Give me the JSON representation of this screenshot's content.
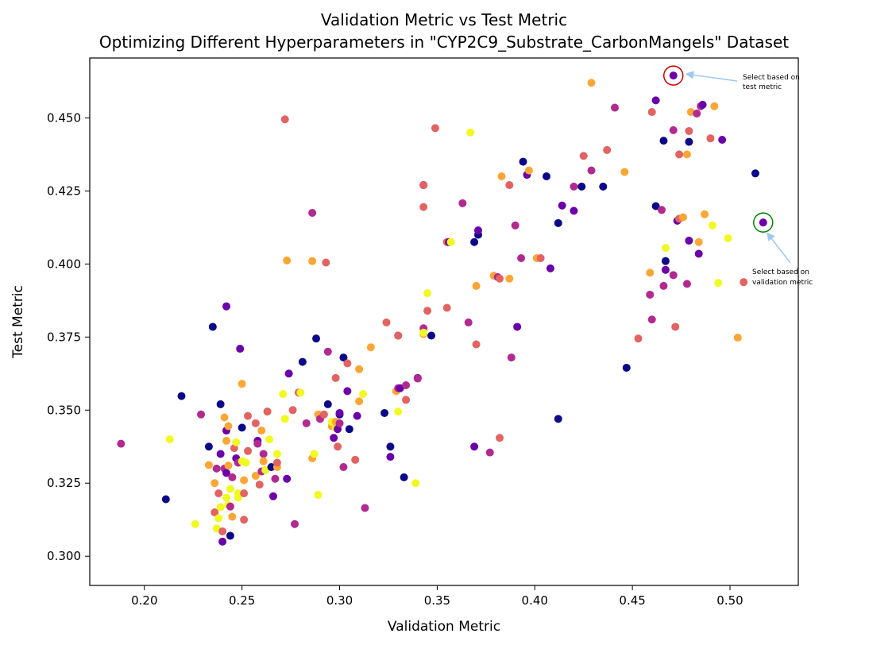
{
  "chart_data": {
    "type": "scatter",
    "title": "Validation Metric vs Test Metric",
    "subtitle": "Optimizing Different Hyperparameters in \"CYP2C9_Substrate_CarbonMangels\" Dataset",
    "xlabel": "Validation Metric",
    "ylabel": "Test Metric",
    "xlim": [
      0.172,
      0.535
    ],
    "ylim": [
      0.29,
      0.4705
    ],
    "xticks": [
      "0.20",
      "0.25",
      "0.30",
      "0.35",
      "0.40",
      "0.45",
      "0.50"
    ],
    "yticks": [
      "0.300",
      "0.325",
      "0.350",
      "0.375",
      "0.400",
      "0.425",
      "0.450"
    ],
    "colormap": [
      "#0d0887",
      "#6a00a8",
      "#b12a90",
      "#e16462",
      "#fca636",
      "#f0f921"
    ],
    "annotations": [
      {
        "line1": "Select based on",
        "line2": "test metric",
        "x": 0.471,
        "y": 0.4645,
        "circle_color": "#cc0000"
      },
      {
        "line1": "Select based on",
        "line2": "validation metric",
        "x": 0.517,
        "y": 0.4142,
        "circle_color": "#008000"
      }
    ],
    "points": [
      [
        0.188,
        0.3385,
        2
      ],
      [
        0.211,
        0.3195,
        0
      ],
      [
        0.213,
        0.34,
        5
      ],
      [
        0.219,
        0.3548,
        0
      ],
      [
        0.226,
        0.311,
        5
      ],
      [
        0.229,
        0.3485,
        2
      ],
      [
        0.233,
        0.3375,
        0
      ],
      [
        0.233,
        0.3312,
        4
      ],
      [
        0.235,
        0.3785,
        0
      ],
      [
        0.236,
        0.325,
        4
      ],
      [
        0.236,
        0.315,
        3
      ],
      [
        0.237,
        0.33,
        2
      ],
      [
        0.237,
        0.3095,
        5
      ],
      [
        0.238,
        0.313,
        5
      ],
      [
        0.238,
        0.3215,
        3
      ],
      [
        0.239,
        0.335,
        1
      ],
      [
        0.239,
        0.352,
        0
      ],
      [
        0.239,
        0.3168,
        5
      ],
      [
        0.24,
        0.3085,
        3
      ],
      [
        0.24,
        0.305,
        1
      ],
      [
        0.241,
        0.33,
        2
      ],
      [
        0.241,
        0.3475,
        4
      ],
      [
        0.242,
        0.3855,
        1
      ],
      [
        0.242,
        0.343,
        1
      ],
      [
        0.242,
        0.3395,
        4
      ],
      [
        0.242,
        0.3285,
        1
      ],
      [
        0.242,
        0.32,
        5
      ],
      [
        0.243,
        0.3175,
        5
      ],
      [
        0.243,
        0.3445,
        4
      ],
      [
        0.243,
        0.331,
        4
      ],
      [
        0.244,
        0.307,
        0
      ],
      [
        0.244,
        0.323,
        5
      ],
      [
        0.244,
        0.317,
        2
      ],
      [
        0.245,
        0.3135,
        4
      ],
      [
        0.245,
        0.327,
        2
      ],
      [
        0.246,
        0.337,
        3
      ],
      [
        0.247,
        0.339,
        5
      ],
      [
        0.247,
        0.3335,
        1
      ],
      [
        0.248,
        0.332,
        2
      ],
      [
        0.248,
        0.3215,
        5
      ],
      [
        0.248,
        0.32,
        5
      ],
      [
        0.249,
        0.371,
        1
      ],
      [
        0.25,
        0.359,
        4
      ],
      [
        0.25,
        0.3325,
        5
      ],
      [
        0.25,
        0.344,
        0
      ],
      [
        0.251,
        0.3125,
        3
      ],
      [
        0.251,
        0.3215,
        3
      ],
      [
        0.251,
        0.326,
        4
      ],
      [
        0.252,
        0.332,
        5
      ],
      [
        0.253,
        0.348,
        3
      ],
      [
        0.253,
        0.336,
        3
      ],
      [
        0.257,
        0.3455,
        3
      ],
      [
        0.257,
        0.3275,
        4
      ],
      [
        0.258,
        0.3395,
        1
      ],
      [
        0.258,
        0.3385,
        2
      ],
      [
        0.259,
        0.3245,
        3
      ],
      [
        0.26,
        0.343,
        4
      ],
      [
        0.26,
        0.329,
        2
      ],
      [
        0.261,
        0.335,
        2
      ],
      [
        0.261,
        0.3325,
        4
      ],
      [
        0.262,
        0.3295,
        5
      ],
      [
        0.263,
        0.3495,
        4
      ],
      [
        0.263,
        0.3495,
        3
      ],
      [
        0.264,
        0.34,
        5
      ],
      [
        0.265,
        0.3305,
        0
      ],
      [
        0.266,
        0.3205,
        1
      ],
      [
        0.267,
        0.3265,
        2
      ],
      [
        0.268,
        0.335,
        5
      ],
      [
        0.268,
        0.3305,
        4
      ],
      [
        0.268,
        0.332,
        3
      ],
      [
        0.271,
        0.3555,
        5
      ],
      [
        0.272,
        0.4495,
        3
      ],
      [
        0.272,
        0.347,
        5
      ],
      [
        0.273,
        0.4012,
        4
      ],
      [
        0.273,
        0.3265,
        1
      ],
      [
        0.274,
        0.3625,
        1
      ],
      [
        0.276,
        0.35,
        3
      ],
      [
        0.277,
        0.311,
        2
      ],
      [
        0.279,
        0.356,
        4
      ],
      [
        0.279,
        0.356,
        3
      ],
      [
        0.28,
        0.356,
        5
      ],
      [
        0.281,
        0.3665,
        0
      ],
      [
        0.283,
        0.3455,
        2
      ],
      [
        0.286,
        0.401,
        4
      ],
      [
        0.286,
        0.4175,
        2
      ],
      [
        0.286,
        0.3335,
        4
      ],
      [
        0.287,
        0.335,
        5
      ],
      [
        0.288,
        0.3745,
        0
      ],
      [
        0.289,
        0.3485,
        4
      ],
      [
        0.289,
        0.321,
        5
      ],
      [
        0.29,
        0.347,
        2
      ],
      [
        0.292,
        0.3485,
        3
      ],
      [
        0.293,
        0.4005,
        3
      ],
      [
        0.294,
        0.352,
        0
      ],
      [
        0.294,
        0.37,
        2
      ],
      [
        0.296,
        0.3445,
        4
      ],
      [
        0.296,
        0.346,
        5
      ],
      [
        0.297,
        0.3405,
        1
      ],
      [
        0.298,
        0.344,
        5
      ],
      [
        0.298,
        0.346,
        4
      ],
      [
        0.298,
        0.361,
        3
      ],
      [
        0.299,
        0.3435,
        1
      ],
      [
        0.299,
        0.3375,
        3
      ],
      [
        0.3,
        0.3455,
        2
      ],
      [
        0.3,
        0.3485,
        0
      ],
      [
        0.3,
        0.349,
        1
      ],
      [
        0.302,
        0.368,
        0
      ],
      [
        0.302,
        0.3305,
        2
      ],
      [
        0.304,
        0.3565,
        1
      ],
      [
        0.304,
        0.366,
        3
      ],
      [
        0.305,
        0.3435,
        0
      ],
      [
        0.308,
        0.333,
        3
      ],
      [
        0.309,
        0.348,
        1
      ],
      [
        0.31,
        0.353,
        4
      ],
      [
        0.31,
        0.364,
        4
      ],
      [
        0.312,
        0.3555,
        5
      ],
      [
        0.313,
        0.3165,
        2
      ],
      [
        0.316,
        0.3715,
        4
      ],
      [
        0.323,
        0.349,
        0
      ],
      [
        0.324,
        0.38,
        3
      ],
      [
        0.326,
        0.3375,
        0
      ],
      [
        0.326,
        0.334,
        1
      ],
      [
        0.329,
        0.3565,
        4
      ],
      [
        0.33,
        0.3575,
        2
      ],
      [
        0.33,
        0.3755,
        0
      ],
      [
        0.33,
        0.3755,
        3
      ],
      [
        0.33,
        0.3495,
        5
      ],
      [
        0.331,
        0.3575,
        1
      ],
      [
        0.333,
        0.327,
        0
      ],
      [
        0.334,
        0.3535,
        3
      ],
      [
        0.334,
        0.3585,
        2
      ],
      [
        0.339,
        0.325,
        5
      ],
      [
        0.34,
        0.361,
        1
      ],
      [
        0.34,
        0.3608,
        2
      ],
      [
        0.343,
        0.427,
        4
      ],
      [
        0.343,
        0.427,
        0
      ],
      [
        0.343,
        0.427,
        3
      ],
      [
        0.343,
        0.4195,
        3
      ],
      [
        0.343,
        0.378,
        2
      ],
      [
        0.343,
        0.376,
        4
      ],
      [
        0.343,
        0.3765,
        5
      ],
      [
        0.345,
        0.39,
        5
      ],
      [
        0.345,
        0.384,
        3
      ],
      [
        0.347,
        0.3755,
        0
      ],
      [
        0.349,
        0.4465,
        3
      ],
      [
        0.355,
        0.385,
        3
      ],
      [
        0.355,
        0.4075,
        3
      ],
      [
        0.356,
        0.4075,
        1
      ],
      [
        0.357,
        0.4075,
        5
      ],
      [
        0.363,
        0.4208,
        2
      ],
      [
        0.366,
        0.38,
        2
      ],
      [
        0.367,
        0.445,
        5
      ],
      [
        0.369,
        0.4075,
        0
      ],
      [
        0.369,
        0.3375,
        1
      ],
      [
        0.37,
        0.3725,
        3
      ],
      [
        0.37,
        0.3925,
        4
      ],
      [
        0.371,
        0.41,
        0
      ],
      [
        0.371,
        0.4115,
        1
      ],
      [
        0.377,
        0.3355,
        2
      ],
      [
        0.379,
        0.396,
        4
      ],
      [
        0.381,
        0.3955,
        2
      ],
      [
        0.382,
        0.395,
        3
      ],
      [
        0.382,
        0.3405,
        3
      ],
      [
        0.383,
        0.43,
        4
      ],
      [
        0.387,
        0.427,
        3
      ],
      [
        0.387,
        0.395,
        4
      ],
      [
        0.388,
        0.368,
        2
      ],
      [
        0.39,
        0.4132,
        2
      ],
      [
        0.391,
        0.3785,
        1
      ],
      [
        0.393,
        0.402,
        2
      ],
      [
        0.394,
        0.435,
        0
      ],
      [
        0.396,
        0.4305,
        1
      ],
      [
        0.397,
        0.432,
        4
      ],
      [
        0.401,
        0.402,
        4
      ],
      [
        0.403,
        0.402,
        3
      ],
      [
        0.406,
        0.43,
        0
      ],
      [
        0.408,
        0.3985,
        1
      ],
      [
        0.412,
        0.347,
        0
      ],
      [
        0.412,
        0.414,
        0
      ],
      [
        0.414,
        0.42,
        1
      ],
      [
        0.42,
        0.4265,
        2
      ],
      [
        0.42,
        0.4182,
        1
      ],
      [
        0.424,
        0.4265,
        0
      ],
      [
        0.425,
        0.437,
        3
      ],
      [
        0.429,
        0.462,
        4
      ],
      [
        0.429,
        0.432,
        2
      ],
      [
        0.435,
        0.4265,
        0
      ],
      [
        0.437,
        0.439,
        3
      ],
      [
        0.441,
        0.4535,
        2
      ],
      [
        0.446,
        0.4315,
        4
      ],
      [
        0.447,
        0.3645,
        0
      ],
      [
        0.453,
        0.3745,
        3
      ],
      [
        0.459,
        0.3895,
        2
      ],
      [
        0.459,
        0.397,
        4
      ],
      [
        0.46,
        0.381,
        2
      ],
      [
        0.46,
        0.452,
        3
      ],
      [
        0.462,
        0.456,
        1
      ],
      [
        0.462,
        0.4198,
        0
      ],
      [
        0.465,
        0.4185,
        2
      ],
      [
        0.466,
        0.3925,
        2
      ],
      [
        0.466,
        0.4422,
        0
      ],
      [
        0.467,
        0.398,
        1
      ],
      [
        0.467,
        0.401,
        0
      ],
      [
        0.467,
        0.4055,
        5
      ],
      [
        0.471,
        0.4458,
        2
      ],
      [
        0.471,
        0.3962,
        2
      ],
      [
        0.472,
        0.3785,
        3
      ],
      [
        0.473,
        0.4148,
        1
      ],
      [
        0.474,
        0.4155,
        3
      ],
      [
        0.474,
        0.4375,
        3
      ],
      [
        0.476,
        0.416,
        4
      ],
      [
        0.478,
        0.4375,
        4
      ],
      [
        0.478,
        0.3932,
        2
      ],
      [
        0.479,
        0.408,
        1
      ],
      [
        0.479,
        0.4418,
        0
      ],
      [
        0.479,
        0.4455,
        3
      ],
      [
        0.48,
        0.452,
        4
      ],
      [
        0.483,
        0.4515,
        2
      ],
      [
        0.484,
        0.4075,
        4
      ],
      [
        0.484,
        0.4035,
        1
      ],
      [
        0.485,
        0.454,
        2
      ],
      [
        0.486,
        0.4545,
        1
      ],
      [
        0.487,
        0.417,
        4
      ],
      [
        0.49,
        0.443,
        3
      ],
      [
        0.491,
        0.4132,
        5
      ],
      [
        0.492,
        0.454,
        4
      ],
      [
        0.494,
        0.3935,
        5
      ],
      [
        0.496,
        0.4425,
        1
      ],
      [
        0.499,
        0.4088,
        5
      ],
      [
        0.504,
        0.3748,
        4
      ],
      [
        0.507,
        0.3938,
        3
      ],
      [
        0.513,
        0.431,
        0
      ],
      [
        0.471,
        0.4645,
        1
      ],
      [
        0.517,
        0.4142,
        1
      ]
    ]
  }
}
